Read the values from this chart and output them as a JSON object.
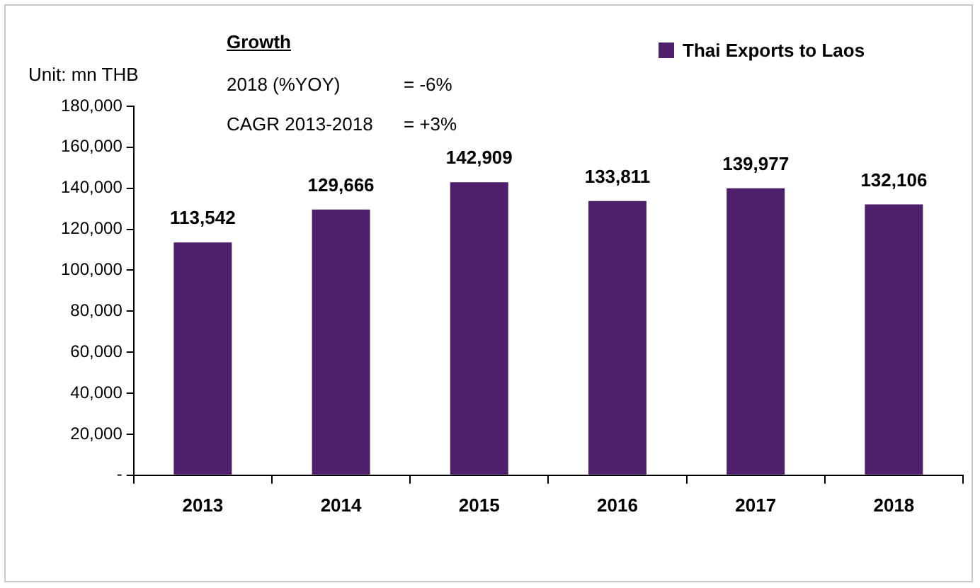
{
  "chart_data": {
    "type": "bar",
    "categories": [
      "2013",
      "2014",
      "2015",
      "2016",
      "2017",
      "2018"
    ],
    "series": [
      {
        "name": "Thai Exports to Laos",
        "color": "#4e1f6b",
        "values": [
          113542,
          129666,
          142909,
          133811,
          139977,
          132106
        ],
        "value_labels": [
          "113,542",
          "129,666",
          "142,909",
          "133,811",
          "139,977",
          "132,106"
        ]
      }
    ],
    "ylim": [
      0,
      180000
    ],
    "yticks": [
      {
        "value": 0,
        "label": "-"
      },
      {
        "value": 20000,
        "label": "20,000"
      },
      {
        "value": 40000,
        "label": "40,000"
      },
      {
        "value": 60000,
        "label": "60,000"
      },
      {
        "value": 80000,
        "label": "80,000"
      },
      {
        "value": 100000,
        "label": "100,000"
      },
      {
        "value": 120000,
        "label": "120,000"
      },
      {
        "value": 140000,
        "label": "140,000"
      },
      {
        "value": 160000,
        "label": "160,000"
      },
      {
        "value": 180000,
        "label": "180,000"
      }
    ],
    "grid": false,
    "legend": "top right",
    "annotations": [
      "Unit: mn THB",
      "Growth",
      "2018 (%YOY)",
      "= -6%",
      "CAGR 2013-2018",
      "= +3%"
    ]
  }
}
